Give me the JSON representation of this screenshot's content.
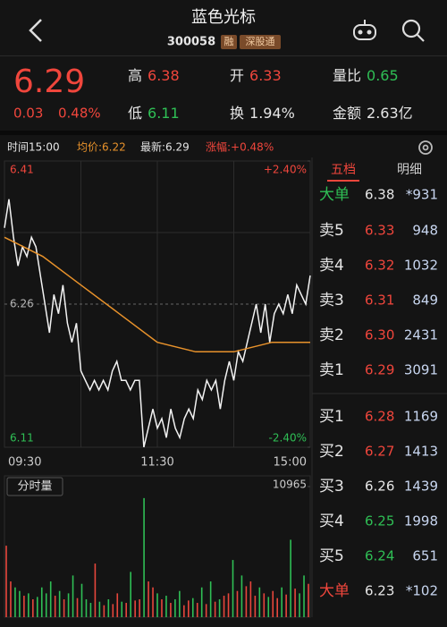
{
  "header": {
    "title": "蓝色光标",
    "code": "300058",
    "badges": [
      "融",
      "深股通"
    ]
  },
  "quote": {
    "price": "6.29",
    "change": "0.03",
    "change_pct": "0.48%",
    "color": "#f0463c",
    "fields": [
      {
        "label": "高",
        "value": "6.38",
        "color": "#f0463c"
      },
      {
        "label": "开",
        "value": "6.33",
        "color": "#f0463c"
      },
      {
        "label": "量比",
        "value": "0.65",
        "color": "#2fbf55"
      },
      {
        "label": "低",
        "value": "6.11",
        "color": "#2fbf55"
      },
      {
        "label": "换",
        "value": "1.94%",
        "color": "#e6e6e6"
      },
      {
        "label": "金额",
        "value": "2.63亿",
        "color": "#e6e6e6"
      }
    ]
  },
  "infobar": {
    "time": "时间15:00",
    "avg": "均价:6.22",
    "latest": "最新:6.29",
    "pct": "涨幅:+0.48%"
  },
  "chart_data": {
    "type": "line",
    "ylim": [
      6.11,
      6.41
    ],
    "yticks": [
      6.41,
      6.26,
      6.11
    ],
    "y2lim": [
      -2.4,
      2.4
    ],
    "y2ticks": [
      {
        "value": 2.4,
        "label": "+2.40%"
      },
      {
        "value": -2.4,
        "label": "-2.40%"
      }
    ],
    "xticks": [
      "09:30",
      "11:30",
      "15:00"
    ],
    "series": [
      {
        "name": "最新",
        "color": "#f2f2f2",
        "values": [
          6.34,
          6.37,
          6.33,
          6.3,
          6.32,
          6.31,
          6.33,
          6.32,
          6.29,
          6.26,
          6.23,
          6.27,
          6.25,
          6.28,
          6.24,
          6.22,
          6.24,
          6.19,
          6.18,
          6.17,
          6.18,
          6.17,
          6.18,
          6.17,
          6.19,
          6.2,
          6.18,
          6.18,
          6.17,
          6.18,
          6.18,
          6.11,
          6.13,
          6.15,
          6.13,
          6.14,
          6.12,
          6.15,
          6.13,
          6.12,
          6.14,
          6.15,
          6.14,
          6.17,
          6.16,
          6.18,
          6.17,
          6.18,
          6.15,
          6.18,
          6.2,
          6.18,
          6.21,
          6.2,
          6.22,
          6.24,
          6.26,
          6.23,
          6.26,
          6.22,
          6.25,
          6.26,
          6.25,
          6.27,
          6.25,
          6.28,
          6.27,
          6.26,
          6.29
        ]
      },
      {
        "name": "均价",
        "color": "#e8922b",
        "values": [
          6.33,
          6.31,
          6.28,
          6.25,
          6.22,
          6.21,
          6.21,
          6.22,
          6.22
        ]
      }
    ],
    "volume": {
      "label": "分时量",
      "ylim": [
        0,
        10965
      ],
      "yticks": [
        10965
      ],
      "up_color": "#e8463c",
      "down_color": "#2fbf55",
      "values": [
        6000,
        3000,
        2500,
        2200,
        1800,
        2000,
        1500,
        1700,
        2500,
        2000,
        3000,
        1800,
        2200,
        1500,
        2000,
        3500,
        1600,
        2800,
        1500,
        1200,
        4500,
        1300,
        1000,
        1500,
        1100,
        2000,
        1300,
        1200,
        3800,
        1400,
        1500,
        10000,
        3000,
        2500,
        2000,
        1500,
        1800,
        1200,
        1500,
        2200,
        1000,
        1400,
        1600,
        1200,
        2500,
        1100,
        3000,
        1300,
        1500,
        1800,
        2000,
        4800,
        2200,
        3500,
        2600,
        3000,
        1800,
        2500,
        2000,
        1700,
        2200,
        1600,
        2500,
        1900,
        6500,
        2400,
        2000,
        3500,
        2800
      ]
    }
  },
  "orderbook": {
    "tabs": [
      "五档",
      "明细"
    ],
    "rows": [
      {
        "label": "大单",
        "price": "6.38",
        "volume": "*931",
        "label_color": "#2fbf55",
        "price_color": "#e6e6e6"
      },
      {
        "label": "卖5",
        "price": "6.33",
        "volume": "948",
        "label_color": "#e6e6e6",
        "price_color": "#f0463c"
      },
      {
        "label": "卖4",
        "price": "6.32",
        "volume": "1032",
        "label_color": "#e6e6e6",
        "price_color": "#f0463c"
      },
      {
        "label": "卖3",
        "price": "6.31",
        "volume": "849",
        "label_color": "#e6e6e6",
        "price_color": "#f0463c"
      },
      {
        "label": "卖2",
        "price": "6.30",
        "volume": "2431",
        "label_color": "#e6e6e6",
        "price_color": "#f0463c"
      },
      {
        "label": "卖1",
        "price": "6.29",
        "volume": "3091",
        "label_color": "#e6e6e6",
        "price_color": "#f0463c"
      },
      {
        "label": "买1",
        "price": "6.28",
        "volume": "1169",
        "label_color": "#e6e6e6",
        "price_color": "#f0463c"
      },
      {
        "label": "买2",
        "price": "6.27",
        "volume": "1413",
        "label_color": "#e6e6e6",
        "price_color": "#f0463c"
      },
      {
        "label": "买3",
        "price": "6.26",
        "volume": "1439",
        "label_color": "#e6e6e6",
        "price_color": "#e6e6e6"
      },
      {
        "label": "买4",
        "price": "6.25",
        "volume": "1998",
        "label_color": "#e6e6e6",
        "price_color": "#2fbf55"
      },
      {
        "label": "买5",
        "price": "6.24",
        "volume": "651",
        "label_color": "#e6e6e6",
        "price_color": "#2fbf55"
      },
      {
        "label": "大单",
        "price": "6.23",
        "volume": "*102",
        "label_color": "#f0463c",
        "price_color": "#e6e6e6"
      }
    ]
  }
}
